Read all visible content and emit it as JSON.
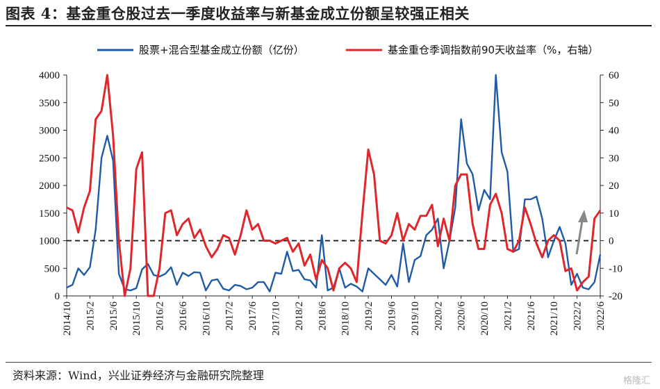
{
  "title": "图表 4：基金重仓股过去一季度收益率与新基金成立份额呈较强正相关",
  "source": "资料来源：Wind，兴业证券经济与金融研究院整理",
  "watermark": "格隆汇",
  "colors": {
    "blue": "#1f5aa6",
    "red": "#e0262b",
    "arrow": "#888888"
  },
  "chart_data": {
    "type": "line",
    "legend_position": "top",
    "x_tick_labels": [
      "2014/10",
      "2015/2",
      "2015/6",
      "2015/10",
      "2016/2",
      "2016/6",
      "2016/10",
      "2017/2",
      "2017/6",
      "2017/10",
      "2018/2",
      "2018/6",
      "2018/10",
      "2019/2",
      "2019/6",
      "2019/10",
      "2020/2",
      "2020/6",
      "2020/10",
      "2021/2",
      "2021/6",
      "2021/10",
      "2022/2",
      "2022/6"
    ],
    "y_left": {
      "min": 0,
      "max": 4000,
      "ticks": [
        0,
        500,
        1000,
        1500,
        2000,
        2500,
        3000,
        3500,
        4000
      ]
    },
    "y_right": {
      "min": -20,
      "max": 60,
      "ticks": [
        -20,
        -10,
        0,
        10,
        20,
        30,
        40,
        50,
        60
      ]
    },
    "reference_line": {
      "axis": "right",
      "value": 0,
      "style": "dashed"
    },
    "series": [
      {
        "name": "股票+混合型基金成立份额（亿份）",
        "axis": "left",
        "color": "#1f5aa6",
        "values": [
          150,
          200,
          500,
          380,
          520,
          1200,
          2500,
          2900,
          2450,
          400,
          120,
          100,
          140,
          480,
          580,
          380,
          350,
          400,
          520,
          200,
          420,
          360,
          430,
          420,
          100,
          280,
          300,
          130,
          100,
          200,
          180,
          120,
          150,
          250,
          250,
          80,
          420,
          400,
          800,
          450,
          470,
          300,
          280,
          150,
          1100,
          100,
          150,
          500,
          150,
          220,
          170,
          80,
          500,
          400,
          300,
          200,
          380,
          170,
          950,
          250,
          650,
          720,
          1100,
          1200,
          1400,
          500,
          1000,
          1600,
          3200,
          2400,
          2200,
          1550,
          1920,
          1750,
          4000,
          2600,
          2250,
          800,
          850,
          1750,
          1750,
          1800,
          1400,
          700,
          1000,
          1250,
          950,
          200,
          400,
          150,
          120,
          250,
          750
        ]
      },
      {
        "name": "基金重仓季调指数前90天收益率（%，右轴）",
        "axis": "right",
        "color": "#e0262b",
        "values": [
          12,
          11,
          3,
          12,
          18,
          44,
          47,
          60,
          38,
          0,
          -22,
          -10,
          26,
          32,
          -22,
          -22,
          -10,
          10,
          11,
          2,
          6,
          8,
          1,
          4,
          -2,
          -6,
          -3,
          2,
          1,
          -5,
          2,
          11,
          4,
          6,
          0,
          0,
          -1,
          0,
          1,
          -4,
          -1,
          -9,
          -5,
          -14,
          -7,
          -10,
          -18,
          -10,
          -8,
          -10,
          -15,
          10,
          33,
          24,
          0,
          -1,
          2,
          10,
          0,
          6,
          4,
          9,
          9,
          13,
          -2,
          8,
          0,
          20,
          24,
          24,
          6,
          -3,
          -3,
          13,
          17,
          10,
          -3,
          -4,
          0,
          12,
          6,
          -1,
          -6,
          0,
          2,
          0,
          -11,
          -10,
          -18,
          -15,
          -13,
          8,
          11
        ]
      }
    ]
  }
}
